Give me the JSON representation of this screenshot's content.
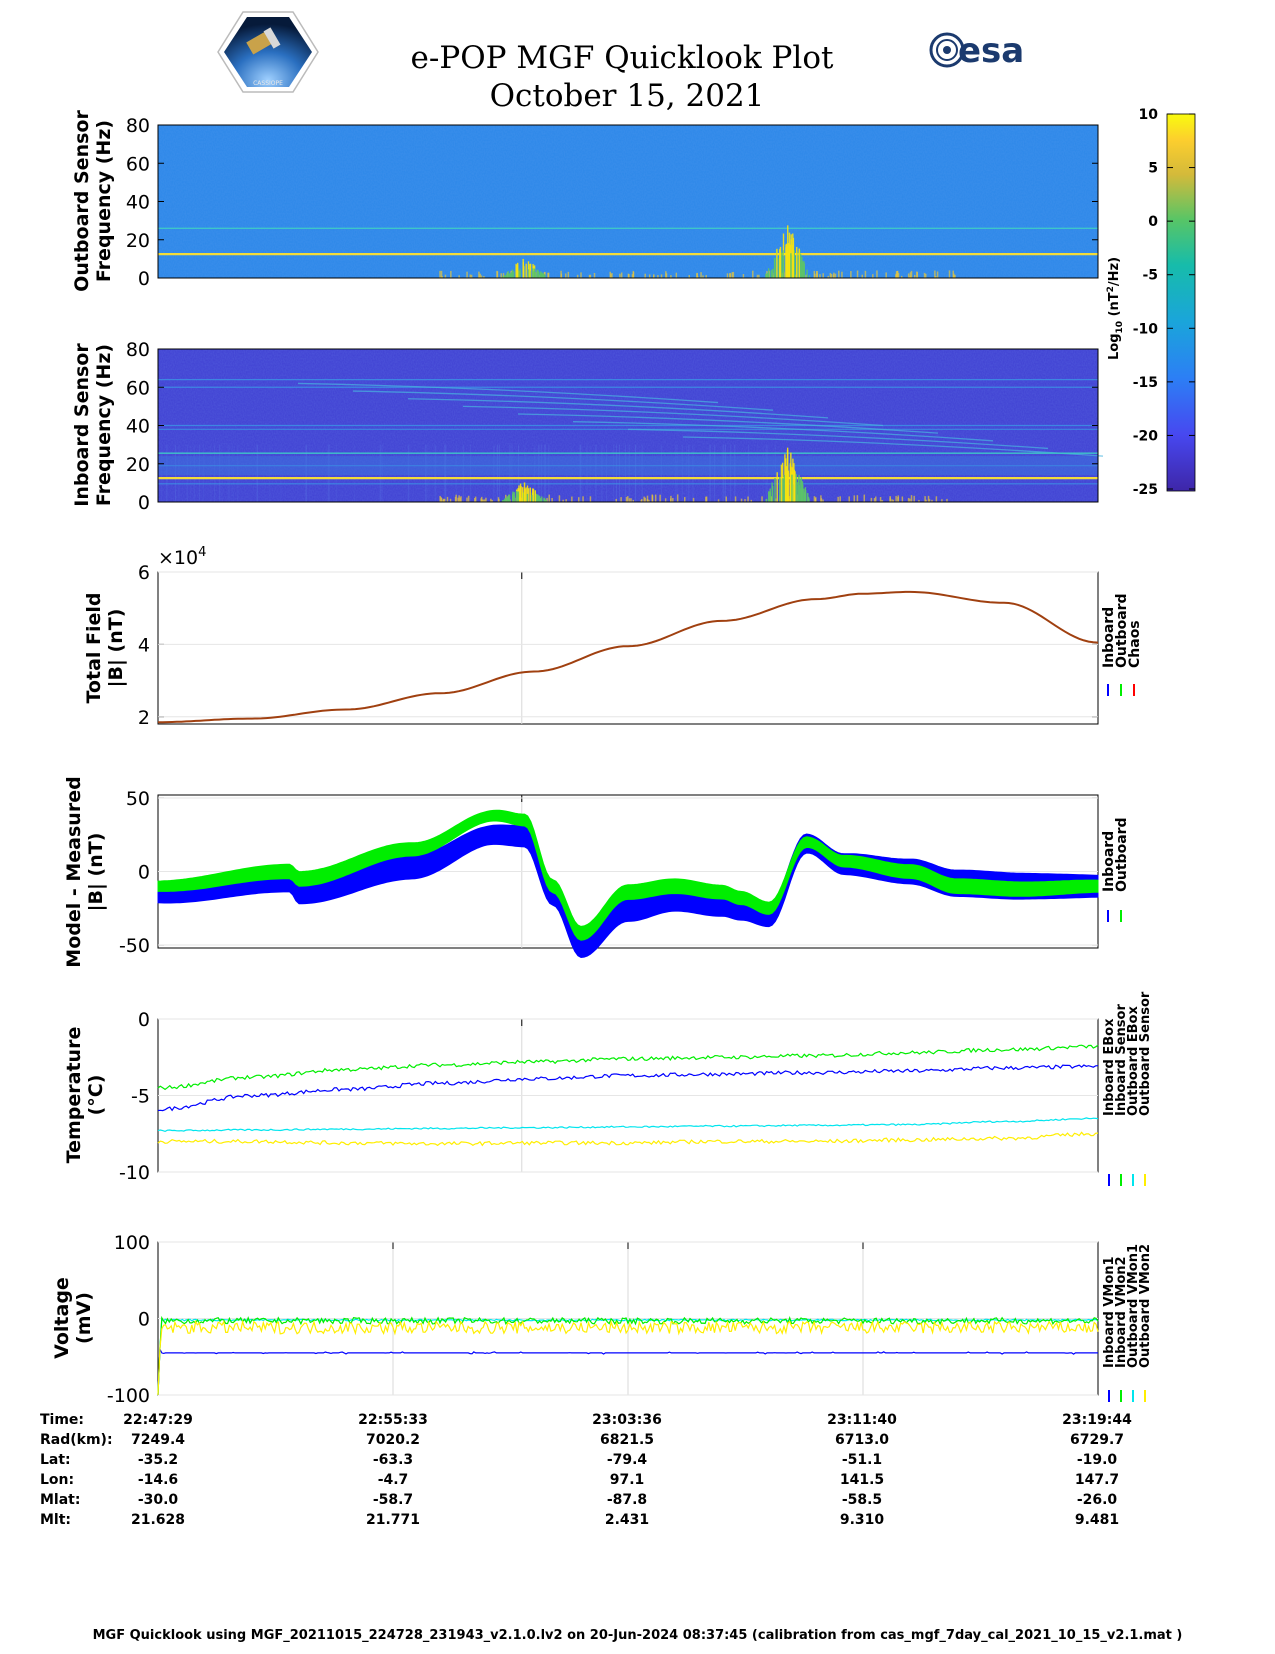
{
  "title": {
    "line1": "e-POP MGF Quicklook Plot",
    "line2": "October 15, 2021"
  },
  "logos": {
    "left": "CASSIOPE",
    "right": "esa"
  },
  "colorbar": {
    "label_main": "Log",
    "label_sub": "10",
    "label_unit_a": " (nT",
    "label_unit_sup": "2",
    "label_unit_b": "/Hz)",
    "ticks": [
      "10",
      "5",
      "0",
      "-5",
      "-10",
      "-15",
      "-20",
      "-25"
    ],
    "range": [
      -25,
      10
    ]
  },
  "colors": {
    "inboard": "#0000ff",
    "outboard": "#00ee00",
    "chaos": "#ff0000",
    "cyan": "#00e5ee",
    "yellow": "#ffee00"
  },
  "chart_data": [
    {
      "type": "heatmap",
      "ylabel_line1": "Outboard Sensor",
      "ylabel_line2": "Frequency (Hz)",
      "ylim": [
        0,
        80
      ],
      "yticks": [
        "80",
        "60",
        "40",
        "20",
        "0"
      ],
      "lines_hz": [
        12.5,
        26
      ],
      "bursts": [
        {
          "center": 0.39,
          "freq_max": 12
        },
        {
          "center": 0.67,
          "freq_max": 30
        }
      ]
    },
    {
      "type": "heatmap",
      "ylabel_line1": "Inboard Sensor",
      "ylabel_line2": "Frequency (Hz)",
      "ylim": [
        0,
        80
      ],
      "yticks": [
        "80",
        "60",
        "40",
        "20",
        "0"
      ],
      "lines_hz": [
        12.5,
        25.5
      ],
      "bursts": [
        {
          "center": 0.39,
          "freq_max": 12
        },
        {
          "center": 0.67,
          "freq_max": 30
        }
      ]
    },
    {
      "type": "line",
      "ylabel_line1": "Total Field",
      "ylabel_line2": "|B| (nT)",
      "exponent_label": "×10",
      "exponent_sup": "4",
      "ylim": [
        1.8,
        6
      ],
      "yticks": [
        "6",
        "4",
        "2"
      ],
      "x": [
        0,
        0.1,
        0.2,
        0.3,
        0.4,
        0.5,
        0.6,
        0.7,
        0.75,
        0.8,
        0.9,
        1.0
      ],
      "series": [
        {
          "name": "Inboard",
          "color": "#0000ff"
        },
        {
          "name": "Outboard",
          "color": "#00ee00"
        },
        {
          "name": "Chaos",
          "color": "#ff0000"
        }
      ],
      "values": [
        1.85,
        1.95,
        2.2,
        2.65,
        3.25,
        3.95,
        4.65,
        5.25,
        5.4,
        5.45,
        5.15,
        4.05
      ]
    },
    {
      "type": "line",
      "ylabel_line1": "Model - Measured",
      "ylabel_line2": "|B| (nT)",
      "ylim": [
        -52,
        52
      ],
      "yticks": [
        "50",
        "0",
        "-50"
      ],
      "x": [
        0,
        0.14,
        0.15,
        0.27,
        0.36,
        0.39,
        0.42,
        0.45,
        0.5,
        0.55,
        0.6,
        0.62,
        0.65,
        0.69,
        0.73,
        0.8,
        0.85,
        0.92,
        1.0
      ],
      "series": [
        {
          "name": "Inboard",
          "color": "#0000ff",
          "values": [
            -15,
            -5,
            -13,
            3,
            25,
            24,
            -15,
            -50,
            -25,
            -18,
            -22,
            -25,
            -30,
            19,
            5,
            0,
            -8,
            -10,
            -10
          ]
        },
        {
          "name": "Outboard",
          "color": "#00ee00",
          "values": [
            -10,
            0,
            -5,
            15,
            38,
            35,
            -10,
            -42,
            -14,
            -10,
            -14,
            -18,
            -25,
            20,
            7,
            0,
            -10,
            -12,
            -10
          ]
        }
      ]
    },
    {
      "type": "line",
      "ylabel_line1": "Temperature",
      "ylabel_line2": "(°C)",
      "ylim": [
        -10,
        0
      ],
      "yticks": [
        "0",
        "-5",
        "-10"
      ],
      "x": [
        0,
        0.1,
        0.2,
        0.3,
        0.4,
        0.5,
        0.6,
        0.7,
        0.8,
        0.9,
        1.0
      ],
      "series": [
        {
          "name": "Inboard EBox",
          "color": "#0000ff",
          "values": [
            -5.9,
            -5.0,
            -4.6,
            -4.2,
            -3.9,
            -3.7,
            -3.6,
            -3.5,
            -3.4,
            -3.2,
            -3.1
          ]
        },
        {
          "name": "Inboard Sensor",
          "color": "#00ee00",
          "values": [
            -4.5,
            -3.8,
            -3.3,
            -3.0,
            -2.8,
            -2.6,
            -2.5,
            -2.4,
            -2.2,
            -2.0,
            -1.8
          ]
        },
        {
          "name": "Outboard EBox",
          "color": "#00e5ee",
          "values": [
            -7.3,
            -7.25,
            -7.2,
            -7.15,
            -7.1,
            -7.05,
            -7.0,
            -6.95,
            -6.9,
            -6.7,
            -6.5
          ]
        },
        {
          "name": "Outboard Sensor",
          "color": "#ffee00",
          "values": [
            -8.0,
            -8.0,
            -8.1,
            -8.15,
            -8.1,
            -8.1,
            -8.0,
            -8.0,
            -7.9,
            -7.8,
            -7.5
          ]
        }
      ]
    },
    {
      "type": "line",
      "ylabel_line1": "Voltage",
      "ylabel_line2": "(mV)",
      "ylim": [
        -100,
        100
      ],
      "yticks": [
        "100",
        "0",
        "-100"
      ],
      "series": [
        {
          "name": "Inboard VMon1",
          "color": "#0000ff",
          "level": -45
        },
        {
          "name": "Inboard VMon2",
          "color": "#00ee00",
          "level": -3
        },
        {
          "name": "Outboard VMon1",
          "color": "#00e5ee",
          "level": -2
        },
        {
          "name": "Outboard VMon2",
          "color": "#ffee00",
          "level": -12
        }
      ]
    }
  ],
  "ephemeris": {
    "labels": [
      "Time:",
      "Rad(km):",
      "Lat:",
      "Lon:",
      "Mlat:",
      "Mlt:"
    ],
    "columns": [
      [
        "22:47:29",
        "7249.4",
        "-35.2",
        "-14.6",
        "-30.0",
        "21.628"
      ],
      [
        "22:55:33",
        "7020.2",
        "-63.3",
        "-4.7",
        "-58.7",
        "21.771"
      ],
      [
        "23:03:36",
        "6821.5",
        "-79.4",
        "97.1",
        "-87.8",
        "2.431"
      ],
      [
        "23:11:40",
        "6713.0",
        "-51.1",
        "141.5",
        "-58.5",
        "9.310"
      ],
      [
        "23:19:44",
        "6729.7",
        "-19.0",
        "147.7",
        "-26.0",
        "9.481"
      ]
    ]
  },
  "footer": "MGF Quicklook using MGF_20211015_224728_231943_v2.1.0.lv2 on 20-Jun-2024 08:37:45 (calibration from cas_mgf_7day_cal_2021_10_15_v2.1.mat )"
}
